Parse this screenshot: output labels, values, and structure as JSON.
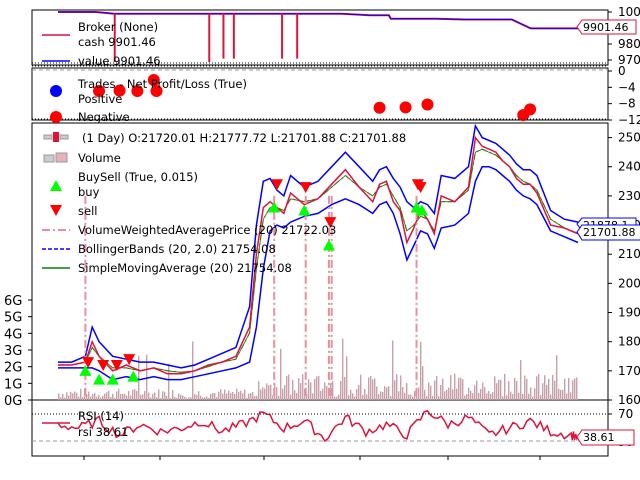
{
  "colors": {
    "broker": "#dc143c",
    "value": "#0000ff",
    "positive": "#0000ff",
    "negative": "#ff0000",
    "price": "#dc143c",
    "buy": "#00ff00",
    "sell": "#ff0000",
    "vwap": "#e8909f",
    "bollinger": "#0000ff",
    "sma": "#008000",
    "rsi": "#dc143c",
    "volume_bar": "#c8a0a8"
  },
  "chart_data": [
    {
      "type": "line",
      "panel": "broker",
      "title": "Broker (None)",
      "legend": [
        {
          "name": "cash",
          "label": "cash 9901.46"
        },
        {
          "name": "value",
          "label": "value 9901.46"
        }
      ],
      "last_value_label": "9901.46",
      "y_ticks": [
        "1000",
        "980",
        "970"
      ],
      "ylim": [
        9700,
        10000
      ],
      "x": [
        0,
        20,
        40,
        60,
        62,
        100,
        140,
        180,
        220,
        240,
        260,
        300,
        330,
        350,
        352,
        400,
        430,
        460,
        480,
        500,
        550
      ],
      "series": [
        {
          "name": "cash",
          "values": [
            10000,
            10000,
            10000,
            9990,
            9990,
            9990,
            9990,
            9990,
            9990,
            9990,
            9990,
            9990,
            9980,
            9980,
            9960,
            9960,
            9955,
            9955,
            9955,
            9901.46,
            9901.46
          ]
        },
        {
          "name": "value",
          "values": [
            10000,
            10000,
            10000,
            9990,
            9990,
            9990,
            9990,
            9990,
            9990,
            9990,
            9990,
            9990,
            9980,
            9980,
            9960,
            9960,
            9955,
            9955,
            9955,
            9901.46,
            9901.46
          ]
        }
      ],
      "dips": [
        {
          "x": 60,
          "value": 9700
        },
        {
          "x": 160,
          "value": 9700
        },
        {
          "x": 175,
          "value": 9720
        },
        {
          "x": 186,
          "value": 9720
        },
        {
          "x": 237,
          "value": 9720
        },
        {
          "x": 253,
          "value": 9720
        }
      ]
    },
    {
      "type": "scatter",
      "panel": "trades",
      "title": "Trades - Net Profit/Loss (True)",
      "legend": [
        {
          "name": "Positive",
          "label": "Positive"
        },
        {
          "name": "Negative",
          "label": "Negative"
        }
      ],
      "y_ticks": [
        "0",
        "−4",
        "−8",
        "−12"
      ],
      "ylim": [
        -12,
        0
      ],
      "positive": [],
      "negative": [
        {
          "x": 30,
          "y": -4.9
        },
        {
          "x": 45,
          "y": -4.8
        },
        {
          "x": 58,
          "y": -4.9
        },
        {
          "x": 70,
          "y": -2.2
        },
        {
          "x": 72,
          "y": -4.9
        },
        {
          "x": 235,
          "y": -9.0
        },
        {
          "x": 254,
          "y": -8.9
        },
        {
          "x": 270,
          "y": -8.2
        },
        {
          "x": 340,
          "y": -10.8
        },
        {
          "x": 345,
          "y": -9.4
        }
      ]
    },
    {
      "type": "line",
      "panel": "price",
      "ohlc_label": "(1 Day) O:21720.01 H:21777.72 L:21701.88 C:21701.88",
      "legend": [
        {
          "name": "Volume",
          "label": "Volume"
        },
        {
          "name": "BuySell",
          "label": "BuySell (True, 0.015)"
        },
        {
          "name": "buy",
          "label": "buy"
        },
        {
          "name": "sell",
          "label": "sell"
        },
        {
          "name": "VWAP",
          "label": "VolumeWeightedAveragePrice (20) 21722.03"
        },
        {
          "name": "Bollinger",
          "label": "BollingerBands (20, 2.0) 21754.08"
        },
        {
          "name": "SMA",
          "label": "SimpleMovingAverage (20) 21754.08"
        }
      ],
      "last_value_labels": [
        "21701.88",
        "21878.1"
      ],
      "y_ticks": [
        "250",
        "240",
        "230",
        "220",
        "210",
        "200",
        "190",
        "180",
        "170",
        "160"
      ],
      "ylim": [
        16000,
        25500
      ],
      "volume_ticks": [
        "6G",
        "5G",
        "4G",
        "3G",
        "2G",
        "1G",
        "0G"
      ],
      "volume_lim": [
        0,
        6000000000
      ],
      "x": [
        0,
        10,
        20,
        25,
        30,
        40,
        50,
        60,
        70,
        80,
        90,
        100,
        110,
        120,
        130,
        140,
        145,
        150,
        155,
        160,
        165,
        170,
        180,
        190,
        200,
        210,
        220,
        230,
        235,
        240,
        245,
        250,
        255,
        260,
        265,
        270,
        275,
        280,
        290,
        300,
        305,
        310,
        315,
        320,
        325,
        330,
        335,
        340,
        345,
        350,
        360,
        370,
        380
      ],
      "close": [
        17200,
        17200,
        17300,
        18000,
        17500,
        17000,
        17200,
        17000,
        17100,
        16900,
        16900,
        17000,
        17200,
        17300,
        17500,
        18500,
        21000,
        22600,
        22800,
        22600,
        22400,
        23100,
        22700,
        22900,
        23400,
        23900,
        23300,
        22800,
        23400,
        23500,
        22800,
        22500,
        21400,
        21900,
        22500,
        22200,
        21700,
        23000,
        22800,
        23300,
        25000,
        24700,
        24600,
        24500,
        24200,
        24000,
        23600,
        23400,
        23400,
        23100,
        22000,
        21900,
        21700
      ],
      "vwap": [
        17200,
        17200,
        17300,
        17800,
        17500,
        17100,
        17100,
        17000,
        17100,
        17000,
        16950,
        17000,
        17150,
        17300,
        17400,
        18300,
        20500,
        22200,
        22600,
        22600,
        22500,
        22900,
        22800,
        22900,
        23300,
        23700,
        23300,
        23000,
        23300,
        23400,
        23000,
        22600,
        21800,
        22000,
        22300,
        22200,
        21800,
        22800,
        22800,
        23200,
        24500,
        24600,
        24500,
        24400,
        24200,
        24000,
        23700,
        23500,
        23400,
        23200,
        22200,
        21900,
        21722
      ],
      "bb_upper": [
        17300,
        17300,
        17500,
        18500,
        18000,
        17500,
        17400,
        17300,
        17300,
        17200,
        17100,
        17200,
        17400,
        17600,
        17800,
        19200,
        22000,
        23500,
        23600,
        23200,
        23000,
        23700,
        23300,
        23500,
        24000,
        24500,
        24000,
        23500,
        23900,
        24000,
        23600,
        23300,
        22800,
        22600,
        22800,
        22700,
        22400,
        23700,
        23600,
        24000,
        25400,
        25000,
        24900,
        24800,
        24600,
        24400,
        24100,
        23900,
        23900,
        23700,
        22500,
        22200,
        22100
      ],
      "bb_lower": [
        17100,
        17100,
        17100,
        17100,
        17000,
        16700,
        16800,
        16700,
        16800,
        16700,
        16700,
        16800,
        16900,
        17000,
        17100,
        17300,
        18500,
        20500,
        21800,
        22000,
        21900,
        22100,
        22300,
        22400,
        22700,
        22900,
        22700,
        22400,
        22700,
        22800,
        22400,
        21700,
        20800,
        21300,
        21800,
        21700,
        21200,
        21900,
        22000,
        22400,
        23500,
        24000,
        24000,
        23900,
        23700,
        23500,
        23200,
        23000,
        22900,
        22700,
        21800,
        21600,
        21400
      ],
      "buy_signals": [
        {
          "x": 20,
          "price": 17000
        },
        {
          "x": 30,
          "price": 16700
        },
        {
          "x": 40,
          "price": 16700
        },
        {
          "x": 55,
          "price": 16800
        },
        {
          "x": 158,
          "price": 22600
        },
        {
          "x": 180,
          "price": 22500
        },
        {
          "x": 198,
          "price": 21300
        },
        {
          "x": 262,
          "price": 22600
        },
        {
          "x": 266,
          "price": 22500
        }
      ],
      "sell_signals": [
        {
          "x": 22,
          "price": 17300
        },
        {
          "x": 33,
          "price": 17200
        },
        {
          "x": 43,
          "price": 17200
        },
        {
          "x": 52,
          "price": 17400
        },
        {
          "x": 160,
          "price": 23400
        },
        {
          "x": 181,
          "price": 23300
        },
        {
          "x": 199,
          "price": 22100
        },
        {
          "x": 263,
          "price": 23400
        },
        {
          "x": 265,
          "price": 23300
        }
      ]
    },
    {
      "type": "line",
      "panel": "rsi",
      "legend": [
        {
          "name": "RSI",
          "label": "RSI (14)"
        },
        {
          "name": "rsi",
          "label": "rsi 38.61"
        }
      ],
      "last_value_label": "38.61",
      "y_ticks": [
        "70",
        "30"
      ],
      "ylim": [
        10,
        90
      ],
      "reference_lines": [
        70,
        30
      ],
      "x": [
        0,
        15,
        30,
        45,
        60,
        75,
        90,
        105,
        120,
        135,
        150,
        165,
        180,
        195,
        210,
        225,
        240,
        255,
        270,
        285,
        300,
        315,
        330,
        345,
        360,
        375,
        380
      ],
      "values": [
        55,
        50,
        60,
        40,
        55,
        45,
        50,
        60,
        45,
        55,
        70,
        50,
        60,
        35,
        65,
        45,
        55,
        40,
        75,
        55,
        65,
        40,
        50,
        60,
        45,
        40,
        38.61
      ]
    }
  ]
}
